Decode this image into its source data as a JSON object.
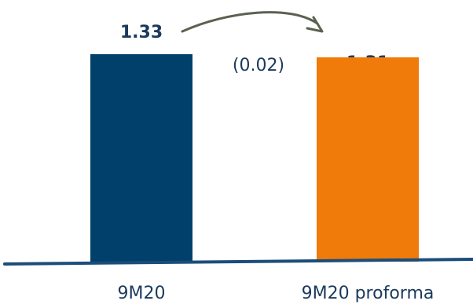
{
  "chart_data": {
    "type": "bar",
    "title": "",
    "xlabel": "",
    "ylabel": "",
    "categories": [
      "9M20",
      "9M20 proforma"
    ],
    "values": [
      1.33,
      1.31
    ],
    "value_labels": [
      "1.33",
      "1.31"
    ],
    "bar_colors": [
      "#00406B",
      "#F07A0A"
    ],
    "label_color": "#1B3A5C",
    "axis_color": "#1B4D7A",
    "arrow_color": "#5A6150",
    "ylim": [
      0,
      1.33
    ],
    "grid": false,
    "annotations": [
      {
        "text": "(0.02)",
        "type": "change-arrow",
        "from_category": "9M20",
        "to_category": "9M20 proforma"
      }
    ]
  }
}
